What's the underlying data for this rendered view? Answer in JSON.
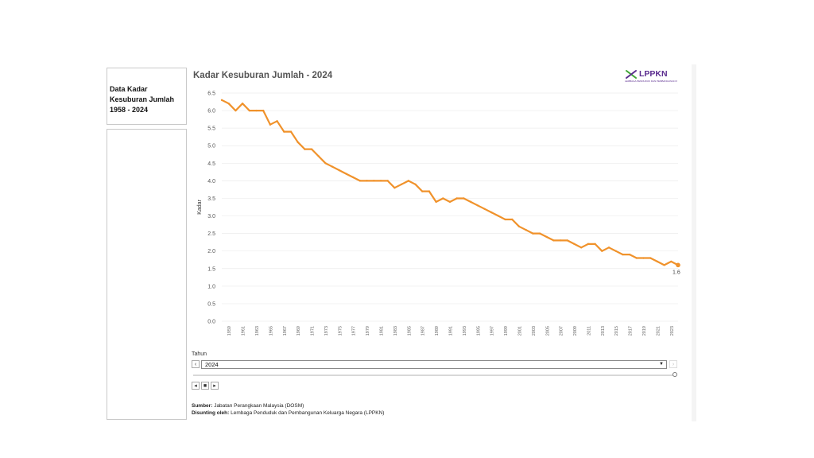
{
  "sidebar": {
    "title_lines": [
      "Data Kadar",
      "Kesuburan Jumlah",
      "1958 - 2024"
    ]
  },
  "chart_data": {
    "type": "line",
    "title": "Kadar Kesuburan Jumlah - 2024",
    "xlabel": "",
    "ylabel": "Kadar",
    "ylim": [
      0,
      6.5
    ],
    "yticks": [
      "0.0",
      "0.5",
      "1.0",
      "1.5",
      "2.0",
      "2.5",
      "3.0",
      "3.5",
      "4.0",
      "4.5",
      "5.0",
      "5.5",
      "6.0",
      "6.5"
    ],
    "x_tick_labels": [
      "1959",
      "1961",
      "1963",
      "1965",
      "1967",
      "1969",
      "1971",
      "1973",
      "1975",
      "1977",
      "1979",
      "1981",
      "1983",
      "1985",
      "1987",
      "1989",
      "1991",
      "1993",
      "1995",
      "1997",
      "1999",
      "2001",
      "2003",
      "2005",
      "2007",
      "2009",
      "2011",
      "2013",
      "2015",
      "2017",
      "2019",
      "2021",
      "2023"
    ],
    "x": [
      1958,
      1959,
      1960,
      1961,
      1962,
      1963,
      1964,
      1965,
      1966,
      1967,
      1968,
      1969,
      1970,
      1971,
      1972,
      1973,
      1974,
      1975,
      1976,
      1977,
      1978,
      1979,
      1980,
      1981,
      1982,
      1983,
      1984,
      1985,
      1986,
      1987,
      1988,
      1989,
      1990,
      1991,
      1992,
      1993,
      1994,
      1995,
      1996,
      1997,
      1998,
      1999,
      2000,
      2001,
      2002,
      2003,
      2004,
      2005,
      2006,
      2007,
      2008,
      2009,
      2010,
      2011,
      2012,
      2013,
      2014,
      2015,
      2016,
      2017,
      2018,
      2019,
      2020,
      2021,
      2022,
      2023,
      2024
    ],
    "values": [
      6.3,
      6.2,
      6.0,
      6.2,
      6.0,
      6.0,
      6.0,
      5.6,
      5.7,
      5.4,
      5.4,
      5.1,
      4.9,
      4.9,
      4.7,
      4.5,
      4.4,
      4.3,
      4.2,
      4.1,
      4.0,
      4.0,
      4.0,
      4.0,
      4.0,
      3.8,
      3.9,
      4.0,
      3.9,
      3.7,
      3.7,
      3.4,
      3.5,
      3.4,
      3.5,
      3.5,
      3.4,
      3.3,
      3.2,
      3.1,
      3.0,
      2.9,
      2.9,
      2.7,
      2.6,
      2.5,
      2.5,
      2.4,
      2.3,
      2.3,
      2.3,
      2.2,
      2.1,
      2.2,
      2.2,
      2.0,
      2.1,
      2.0,
      1.9,
      1.9,
      1.8,
      1.8,
      1.8,
      1.7,
      1.6,
      1.7,
      1.6
    ],
    "last_value_label": "1.6",
    "line_color": "#f0922b",
    "grid": true
  },
  "filter": {
    "label": "Tahun",
    "selected": "2024",
    "prev_label": "‹",
    "next_label": "›",
    "caret": "▼"
  },
  "playback": {
    "back": "◂",
    "stop": "■",
    "play": "▸"
  },
  "logo": {
    "text": "LPPKN",
    "icon": "lppkn-x-logo-icon",
    "subtitle": "LEMBAGA PENDUDUK DAN PEMBANGUNAN KELUARGA NEGARA",
    "colors": {
      "green": "#3fa535",
      "purple": "#5b2d8f"
    }
  },
  "footer": {
    "source_label": "Sumber:",
    "source_value": "Jabatan Perangkaan Malaysia  (DOSM)",
    "edited_label": "Disunting oleh:",
    "edited_value": "Lembaga Penduduk dan Pembangunan Keluarga Negara (LPPKN)"
  }
}
